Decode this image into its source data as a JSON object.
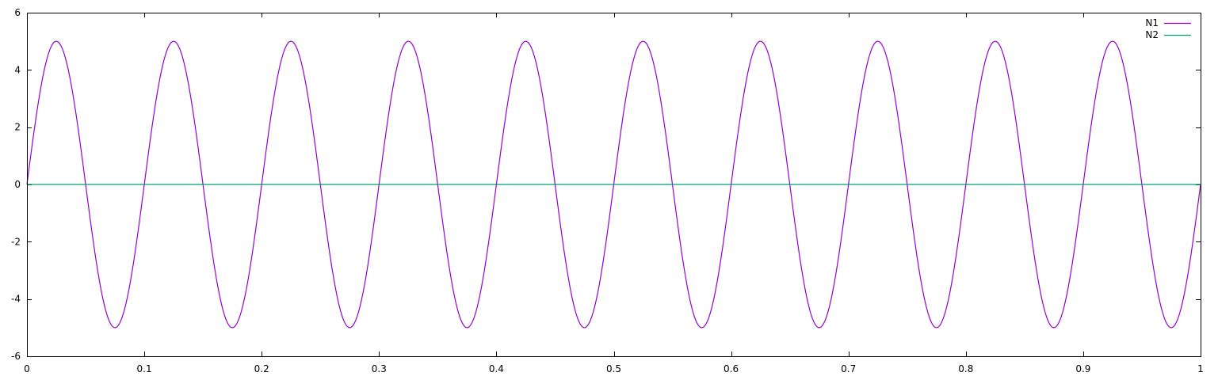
{
  "chart_data": {
    "type": "line",
    "title": "",
    "xlabel": "",
    "ylabel": "",
    "xlim": [
      0,
      1
    ],
    "ylim": [
      -6,
      6
    ],
    "x_ticks": [
      0,
      0.1,
      0.2,
      0.3,
      0.4,
      0.5,
      0.6,
      0.7,
      0.8,
      0.9,
      1
    ],
    "x_tick_labels": [
      "0",
      "0.1",
      "0.2",
      "0.3",
      "0.4",
      "0.5",
      "0.6",
      "0.7",
      "0.8",
      "0.9",
      "1"
    ],
    "y_ticks": [
      -6,
      -4,
      -2,
      0,
      2,
      4,
      6
    ],
    "y_tick_labels": [
      "-6",
      "-4",
      "-2",
      "0",
      "2",
      "4",
      "6"
    ],
    "grid": false,
    "legend_position": "top-right",
    "series": [
      {
        "name": "N1",
        "color": "#9400d3",
        "function": "5*sin(2*pi*10*x)",
        "amplitude": 5,
        "frequency": 10
      },
      {
        "name": "N2",
        "color": "#009e73",
        "function": "0",
        "constant": 0
      }
    ]
  }
}
